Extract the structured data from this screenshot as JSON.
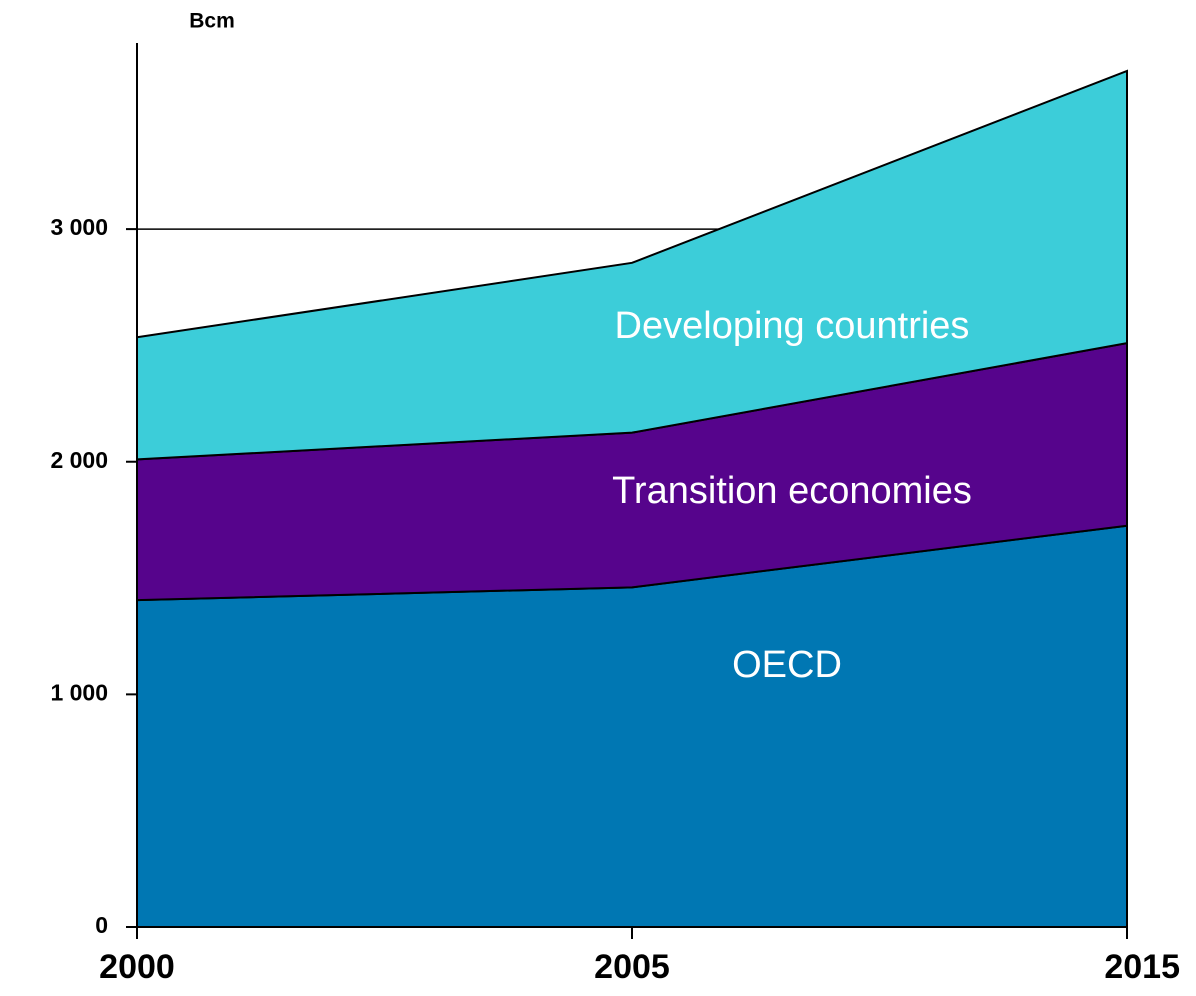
{
  "chart_data": {
    "type": "stacked_area",
    "y_axis_label": "Bcm",
    "categories": [
      "2000",
      "2005",
      "2015"
    ],
    "series": [
      {
        "name": "OECD",
        "color": "#0077b3",
        "values": [
          1405,
          1460,
          1725
        ]
      },
      {
        "name": "Transition economies",
        "color": "#56048c",
        "values": [
          605,
          665,
          785
        ]
      },
      {
        "name": "Developing countries",
        "color": "#3ccdd9",
        "values": [
          525,
          730,
          1170
        ]
      }
    ],
    "ylim": [
      0,
      3800
    ],
    "yticks": [
      0,
      {
        "value": 1000,
        "label": "1 000"
      },
      {
        "value": 2000,
        "label": "2 000"
      },
      {
        "value": 3000,
        "label": "3 000"
      }
    ],
    "grid": true
  }
}
